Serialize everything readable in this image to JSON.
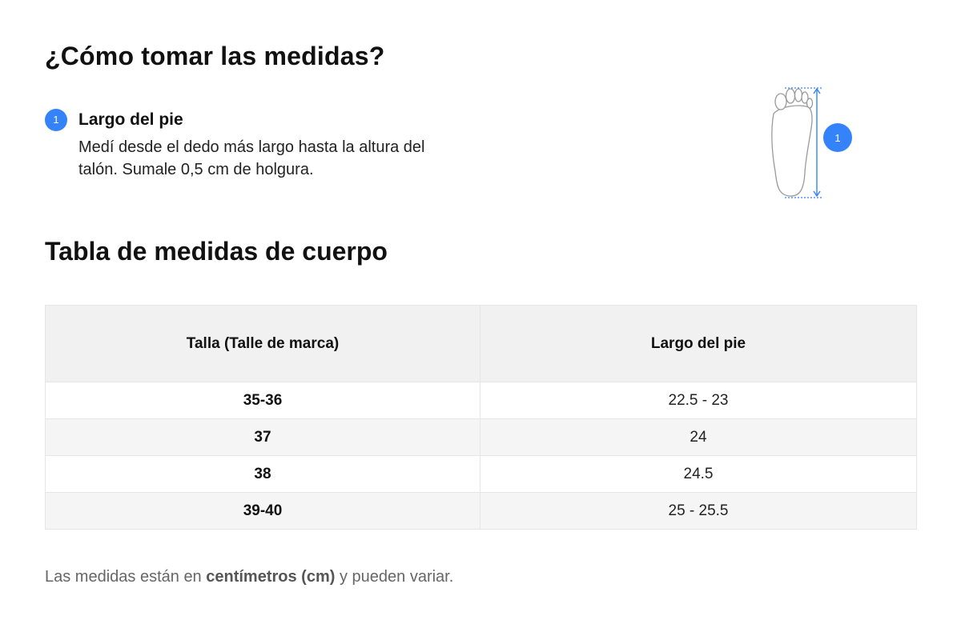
{
  "heading_how_to": "¿Cómo tomar las medidas?",
  "step": {
    "number": "1",
    "title": "Largo del pie",
    "description": "Medí desde el dedo más largo hasta la altura del talón. Sumale 0,5 cm de holgura."
  },
  "illustration": {
    "icon": "foot-measure-icon",
    "marker_number": "1",
    "accent_color": "#3483fa"
  },
  "heading_table": "Tabla de medidas de cuerpo",
  "table": {
    "headers": [
      "Talla (Talle de marca)",
      "Largo del pie"
    ],
    "rows": [
      [
        "35-36",
        "22.5 - 23"
      ],
      [
        "37",
        "24"
      ],
      [
        "38",
        "24.5"
      ],
      [
        "39-40",
        "25 - 25.5"
      ]
    ]
  },
  "footnote": {
    "before": "Las medidas están en ",
    "bold": "centímetros (cm)",
    "after": " y pueden variar."
  },
  "colors": {
    "accent": "#3483fa",
    "header_bg": "#f1f1f1",
    "stripe_bg": "#f5f5f5",
    "border": "#e6e6e6"
  }
}
